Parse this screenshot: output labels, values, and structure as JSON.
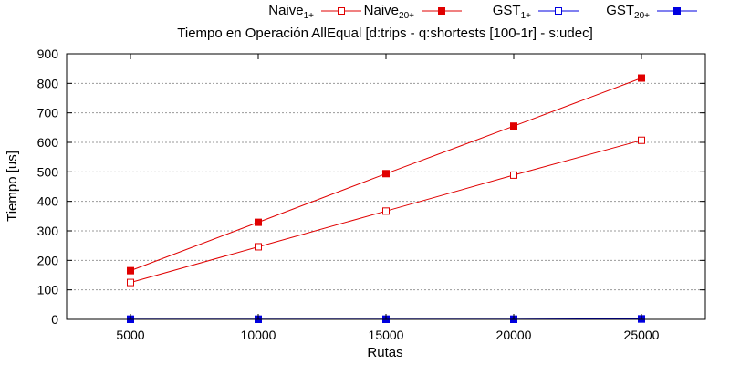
{
  "chart_data": {
    "type": "line",
    "title": "Tiempo en Operación AllEqual [d:trips - q:shortests [100-1r] - s:udec]",
    "xlabel": "Rutas",
    "ylabel": "Tiempo [us]",
    "x": [
      5000,
      10000,
      15000,
      20000,
      25000
    ],
    "xlim": [
      2500,
      27500
    ],
    "ylim": [
      0,
      900
    ],
    "y_ticks": [
      0,
      100,
      200,
      300,
      400,
      500,
      600,
      700,
      800,
      900
    ],
    "grid": "horizontal",
    "legend_position": "top",
    "series": [
      {
        "name": "Naive",
        "sub": "1+",
        "values": [
          125,
          246,
          367,
          489,
          607
        ],
        "color": "#e00000",
        "marker": "open-square"
      },
      {
        "name": "Naive",
        "sub": "20+",
        "values": [
          165,
          329,
          494,
          655,
          818
        ],
        "color": "#e00000",
        "marker": "filled-square"
      },
      {
        "name": "GST",
        "sub": "1+",
        "values": [
          0,
          0,
          0,
          0,
          1
        ],
        "color": "#0000e0",
        "marker": "open-square"
      },
      {
        "name": "GST",
        "sub": "20+",
        "values": [
          1,
          1,
          1,
          1,
          2
        ],
        "color": "#0000e0",
        "marker": "filled-square"
      }
    ]
  }
}
